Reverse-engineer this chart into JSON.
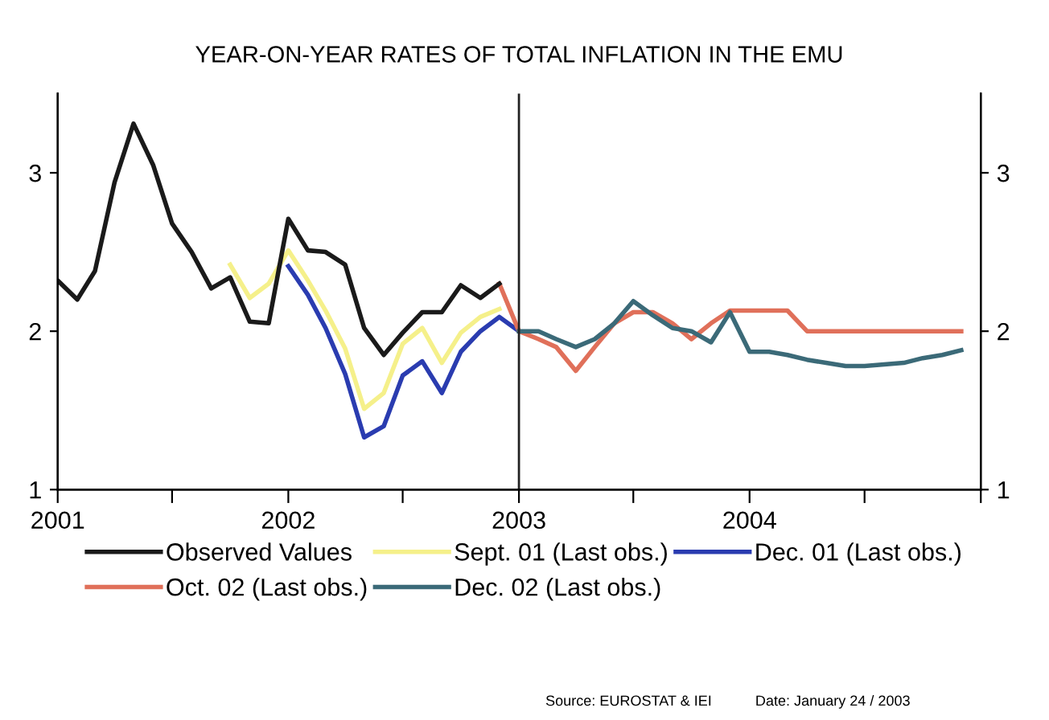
{
  "chart_data": {
    "type": "line",
    "title": "YEAR-ON-YEAR RATES OF TOTAL INFLATION IN THE EMU",
    "xlim": [
      "2001-01",
      "2005-01"
    ],
    "xticks": [
      {
        "value": "2001-01",
        "label": "2001"
      },
      {
        "value": "2001-07",
        "label": null
      },
      {
        "value": "2002-01",
        "label": "2002"
      },
      {
        "value": "2002-07",
        "label": null
      },
      {
        "value": "2003-01",
        "label": "2003"
      },
      {
        "value": "2003-07",
        "label": null
      },
      {
        "value": "2004-01",
        "label": "2004"
      },
      {
        "value": "2004-07",
        "label": null
      },
      {
        "value": "2005-01",
        "label": null
      }
    ],
    "ylim": [
      1,
      3.5
    ],
    "yticks": [
      1,
      2,
      3
    ],
    "y2lim": [
      1,
      3.5
    ],
    "y2ticks": [
      1,
      2,
      3
    ],
    "grid": false,
    "legend": "bottom",
    "marker": "none",
    "line_style": "solid",
    "ref_lines": [
      {
        "axis": "x",
        "value": "2003-01",
        "label": null,
        "color": "#222222"
      }
    ],
    "series": [
      {
        "name": "Observed Values",
        "color": "#1a1a1a",
        "x": [
          "2001-01",
          "2001-02",
          "2001-03",
          "2001-04",
          "2001-05",
          "2001-06",
          "2001-07",
          "2001-08",
          "2001-09",
          "2001-10",
          "2001-11",
          "2001-12",
          "2002-01",
          "2002-02",
          "2002-03",
          "2002-04",
          "2002-05",
          "2002-06",
          "2002-07",
          "2002-08",
          "2002-09",
          "2002-10",
          "2002-11",
          "2002-12"
        ],
        "values": [
          2.32,
          2.2,
          2.38,
          2.94,
          3.31,
          3.05,
          2.68,
          2.5,
          2.27,
          2.34,
          2.06,
          2.05,
          2.71,
          2.51,
          2.5,
          2.42,
          2.02,
          1.85,
          1.99,
          2.12,
          2.12,
          2.29,
          2.21,
          2.3
        ]
      },
      {
        "name": "Sept. 01 (Last obs.)",
        "color": "#f5f08a",
        "x": [
          "2001-10",
          "2001-11",
          "2001-12",
          "2002-01",
          "2002-02",
          "2002-03",
          "2002-04",
          "2002-05",
          "2002-06",
          "2002-07",
          "2002-08",
          "2002-09",
          "2002-10",
          "2002-11",
          "2002-12"
        ],
        "values": [
          2.42,
          2.21,
          2.3,
          2.51,
          2.32,
          2.13,
          1.89,
          1.51,
          1.61,
          1.92,
          2.02,
          1.8,
          1.99,
          2.09,
          2.14
        ]
      },
      {
        "name": "Dec. 01 (Last obs.)",
        "color": "#2a3cb0",
        "x": [
          "2002-01",
          "2002-02",
          "2002-03",
          "2002-04",
          "2002-05",
          "2002-06",
          "2002-07",
          "2002-08",
          "2002-09",
          "2002-10",
          "2002-11",
          "2002-12",
          "2003-01"
        ],
        "values": [
          2.41,
          2.23,
          2.02,
          1.73,
          1.33,
          1.4,
          1.72,
          1.81,
          1.61,
          1.87,
          2.0,
          2.09,
          2.0
        ]
      },
      {
        "name": "Oct. 02 (Last obs.)",
        "color": "#e0705a",
        "x": [
          "2002-12",
          "2003-01",
          "2003-02",
          "2003-03",
          "2003-04",
          "2003-05",
          "2003-06",
          "2003-07",
          "2003-08",
          "2003-09",
          "2003-10",
          "2003-11",
          "2003-12",
          "2004-01",
          "2004-02",
          "2004-03",
          "2004-04",
          "2004-05",
          "2004-06",
          "2004-07",
          "2004-08",
          "2004-09",
          "2004-10",
          "2004-11",
          "2004-12"
        ],
        "values": [
          2.3,
          2.0,
          1.95,
          1.9,
          1.75,
          1.9,
          2.05,
          2.12,
          2.12,
          2.05,
          1.95,
          2.05,
          2.13,
          2.13,
          2.13,
          2.13,
          2.0,
          2.0,
          2.0,
          2.0,
          2.0,
          2.0,
          2.0,
          2.0,
          2.0
        ]
      },
      {
        "name": "Dec. 02 (Last obs.)",
        "color": "#3b6a78",
        "x": [
          "2003-01",
          "2003-02",
          "2003-03",
          "2003-04",
          "2003-05",
          "2003-06",
          "2003-07",
          "2003-08",
          "2003-09",
          "2003-10",
          "2003-11",
          "2003-12",
          "2004-01",
          "2004-02",
          "2004-03",
          "2004-04",
          "2004-05",
          "2004-06",
          "2004-07",
          "2004-08",
          "2004-09",
          "2004-10",
          "2004-11",
          "2004-12"
        ],
        "values": [
          2.0,
          2.0,
          1.95,
          1.9,
          1.95,
          2.05,
          2.19,
          2.1,
          2.02,
          2.0,
          1.93,
          2.12,
          1.87,
          1.87,
          1.85,
          1.82,
          1.8,
          1.78,
          1.78,
          1.79,
          1.8,
          1.83,
          1.85,
          1.88
        ]
      }
    ],
    "annotations": [
      "Source: EUROSTAT & IEI",
      "Date: January 24 / 2003"
    ]
  }
}
